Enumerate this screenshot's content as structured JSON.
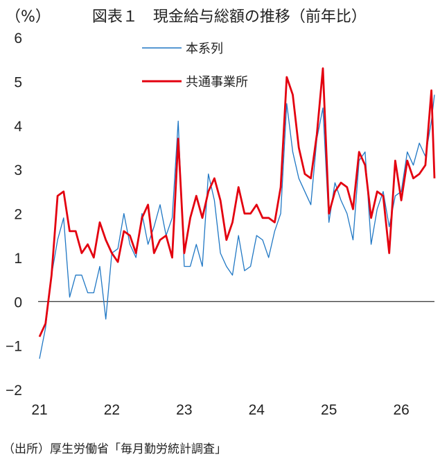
{
  "title": "図表１　現金給与総額の推移（前年比）",
  "unit_label": "（%）",
  "source": "（出所）厚生労働省「毎月勤労統計調査」",
  "colors": {
    "series1": "#1f77c4",
    "series2": "#e3000f",
    "zero_line": "#000000"
  },
  "chart_data": {
    "type": "line",
    "title": "図表１　現金給与総額の推移（前年比）",
    "ylabel": "（%）",
    "ylim": [
      -2,
      6
    ],
    "yticks": [
      "−2",
      "−1",
      "0",
      "1",
      "2",
      "3",
      "4",
      "5",
      "6"
    ],
    "xlim": [
      0,
      65.5
    ],
    "xticks": [
      {
        "label": "21",
        "x": 0
      },
      {
        "label": "22",
        "x": 12
      },
      {
        "label": "23",
        "x": 24
      },
      {
        "label": "24",
        "x": 36
      },
      {
        "label": "25",
        "x": 48
      },
      {
        "label": "26",
        "x": 60
      }
    ],
    "grid": false,
    "legend_position": "top-center",
    "series": [
      {
        "name": "本系列",
        "color": "#1f77c4",
        "x": [
          0,
          1,
          2,
          3,
          4,
          5,
          6,
          7,
          8,
          9,
          10,
          11,
          12,
          13,
          14,
          15,
          16,
          17,
          18,
          19,
          20,
          21,
          22,
          23,
          24,
          25,
          26,
          27,
          28,
          29,
          30,
          31,
          32,
          33,
          34,
          35,
          36,
          37,
          38,
          39,
          40,
          41,
          42,
          43,
          44,
          45,
          46,
          47,
          48,
          49,
          50,
          51,
          52,
          53,
          54,
          55,
          56,
          57,
          58,
          59,
          60,
          61,
          62,
          63,
          64,
          65,
          65.5
        ],
        "values": [
          -1.3,
          -0.6,
          0.6,
          1.4,
          1.9,
          0.1,
          0.6,
          0.6,
          0.2,
          0.2,
          0.8,
          -0.4,
          1.1,
          1.2,
          2.0,
          1.3,
          1.0,
          2.0,
          1.3,
          1.7,
          2.2,
          1.5,
          1.9,
          4.1,
          0.8,
          0.8,
          1.3,
          0.8,
          2.9,
          2.3,
          1.1,
          0.8,
          0.6,
          1.5,
          0.7,
          0.8,
          1.5,
          1.4,
          1.0,
          1.6,
          2.0,
          4.5,
          3.4,
          2.8,
          2.5,
          2.2,
          3.7,
          4.4,
          1.8,
          2.7,
          2.3,
          2.0,
          1.4,
          3.2,
          3.4,
          1.3,
          2.1,
          2.5,
          1.7,
          2.4,
          2.5,
          3.4,
          3.1,
          3.6,
          3.3,
          4.1,
          4.7
        ]
      },
      {
        "name": "共通事業所",
        "color": "#e3000f",
        "x": [
          0,
          1,
          2,
          3,
          4,
          5,
          6,
          7,
          8,
          9,
          10,
          11,
          12,
          13,
          14,
          15,
          16,
          17,
          18,
          19,
          20,
          21,
          22,
          23,
          24,
          25,
          26,
          27,
          28,
          29,
          30,
          31,
          32,
          33,
          34,
          35,
          36,
          37,
          38,
          39,
          40,
          41,
          42,
          43,
          44,
          45,
          46,
          47,
          48,
          49,
          50,
          51,
          52,
          53,
          54,
          55,
          56,
          57,
          58,
          59,
          60,
          61,
          62,
          63,
          64,
          65,
          65.5
        ],
        "values": [
          -0.8,
          -0.5,
          0.6,
          2.4,
          2.5,
          1.6,
          1.6,
          1.1,
          1.3,
          1.0,
          1.8,
          1.4,
          1.1,
          0.9,
          1.6,
          1.5,
          1.1,
          1.9,
          2.2,
          1.1,
          1.4,
          1.5,
          1.0,
          3.7,
          1.1,
          1.9,
          2.4,
          1.9,
          2.5,
          2.8,
          2.3,
          1.4,
          1.8,
          2.6,
          2.0,
          2.0,
          2.2,
          1.9,
          1.9,
          1.8,
          2.6,
          5.1,
          4.7,
          3.5,
          2.9,
          2.8,
          3.8,
          5.3,
          2.0,
          2.5,
          2.7,
          2.6,
          2.1,
          3.4,
          3.1,
          1.9,
          2.5,
          2.4,
          1.1,
          3.2,
          2.3,
          3.2,
          2.8,
          2.9,
          3.1,
          4.8,
          2.8
        ]
      }
    ]
  }
}
